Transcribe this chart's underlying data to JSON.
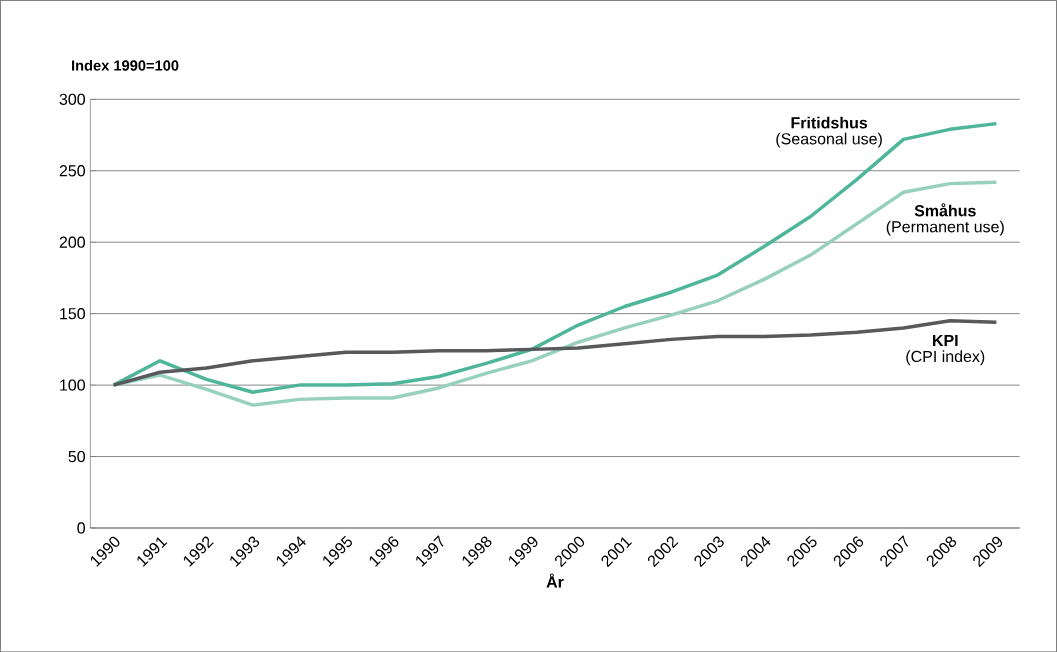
{
  "chart_data": {
    "type": "line",
    "ylabel": "Index 1990=100",
    "xlabel": "År",
    "categories": [
      "1990",
      "1991",
      "1992",
      "1993",
      "1994",
      "1995",
      "1996",
      "1997",
      "1998",
      "1999",
      "2000",
      "2001",
      "2002",
      "2003",
      "2004",
      "2005",
      "2006",
      "2007",
      "2008",
      "2009"
    ],
    "series": [
      {
        "name": "Fritidshus",
        "color": "#4fb59b",
        "values": [
          100,
          117,
          104,
          95,
          100,
          100,
          101,
          106,
          115,
          125,
          142,
          155,
          165,
          177,
          197,
          218,
          244,
          272,
          279,
          283
        ]
      },
      {
        "name": "Småhus",
        "color": "#97d0bd",
        "values": [
          100,
          107,
          97,
          86,
          90,
          91,
          91,
          98,
          108,
          117,
          130,
          140,
          149,
          159,
          174,
          191,
          213,
          235,
          241,
          242
        ]
      },
      {
        "name": "KPI",
        "color": "#58595b",
        "values": [
          100,
          109,
          112,
          117,
          120,
          123,
          123,
          124,
          124,
          125,
          126,
          129,
          132,
          134,
          134,
          135,
          137,
          140,
          145,
          144
        ]
      }
    ],
    "annotations": [
      "(Seasonal use)",
      "(Permanent use)",
      "(CPI index)"
    ],
    "ylim": [
      0,
      300
    ],
    "yticks": [
      0,
      50,
      100,
      150,
      200,
      250,
      300
    ],
    "grid": "y",
    "legend": false
  }
}
